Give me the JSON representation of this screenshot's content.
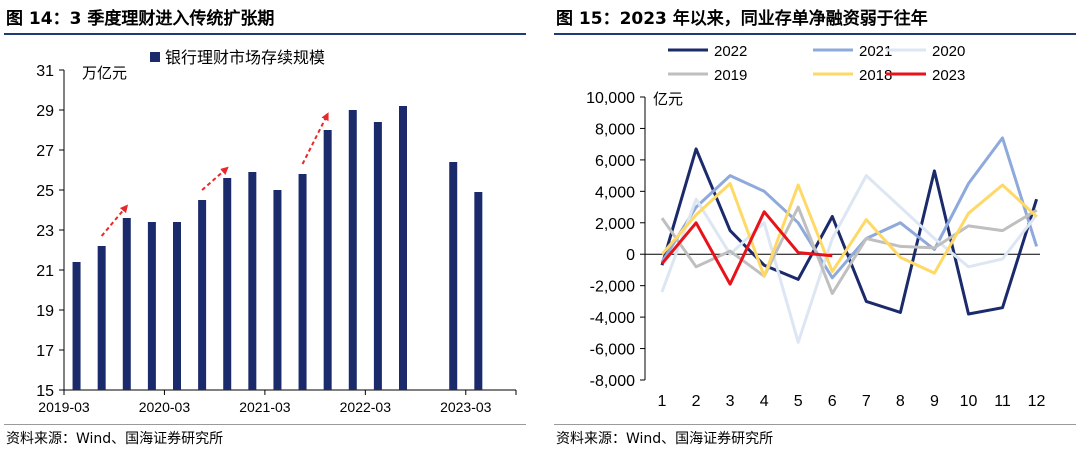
{
  "figures": [
    {
      "title": "图 14：3 季度理财进入传统扩张期",
      "source": "资料来源：Wind、国海证券研究所"
    },
    {
      "title": "图 15：2023 年以来，同业存单净融资弱于往年",
      "source": "资料来源：Wind、国海证券研究所"
    }
  ],
  "chart_data": [
    {
      "type": "bar",
      "title": "",
      "ylabel": "万亿元",
      "legend": {
        "position": "top",
        "entries": [
          "银行理财市场存续规模"
        ]
      },
      "ylim": [
        15,
        31
      ],
      "yticks": [
        15,
        17,
        19,
        21,
        23,
        25,
        27,
        29,
        31
      ],
      "x_tick_labels": [
        "2019-03",
        "2020-03",
        "2021-03",
        "2022-03",
        "2023-03"
      ],
      "categories": [
        "2019-03",
        "2019-06",
        "2019-09",
        "2019-12",
        "2020-03",
        "2020-06",
        "2020-09",
        "2020-12",
        "2021-03",
        "2021-06",
        "2021-09",
        "2021-12",
        "2022-03",
        "2022-06",
        "2022-09",
        "2022-12",
        "2023-03",
        "2023-06"
      ],
      "series": [
        {
          "name": "银行理财市场存续规模",
          "color": "#1b2a6b",
          "values": [
            21.4,
            22.2,
            23.6,
            23.4,
            23.4,
            24.5,
            25.6,
            25.9,
            25.0,
            25.8,
            28.0,
            29.0,
            28.4,
            29.2,
            null,
            26.4,
            24.9,
            null
          ]
        }
      ],
      "annotations": [
        {
          "type": "arrow",
          "from": [
            "2019-06",
            22.7
          ],
          "to": [
            "2019-09",
            24.2
          ],
          "color": "#e8282b",
          "style": "dashed"
        },
        {
          "type": "arrow",
          "from": [
            "2020-06",
            25.0
          ],
          "to": [
            "2020-09",
            26.1
          ],
          "color": "#e8282b",
          "style": "dashed"
        },
        {
          "type": "arrow",
          "from": [
            "2021-06",
            26.3
          ],
          "to": [
            "2021-09",
            28.8
          ],
          "color": "#e8282b",
          "style": "dashed"
        }
      ],
      "grid": false
    },
    {
      "type": "line",
      "title": "",
      "ylabel": "亿元",
      "x": [
        1,
        2,
        3,
        4,
        5,
        6,
        7,
        8,
        9,
        10,
        11,
        12
      ],
      "ylim": [
        -8000,
        10000
      ],
      "yticks": [
        -8000,
        -6000,
        -4000,
        -2000,
        0,
        2000,
        4000,
        6000,
        8000,
        10000
      ],
      "ytick_labels": [
        "-8,000",
        "-6,000",
        "-4,000",
        "-2,000",
        "0",
        "2,000",
        "4,000",
        "6,000",
        "8,000",
        "10,000"
      ],
      "legend": {
        "position": "top",
        "columns": 3
      },
      "grid": false,
      "series": [
        {
          "name": "2022",
          "color": "#1b2a6b",
          "width": 3,
          "values": [
            -700,
            6700,
            1500,
            -700,
            -1600,
            2400,
            -3000,
            -3700,
            5300,
            -3800,
            -3400,
            3500
          ]
        },
        {
          "name": "2021",
          "color": "#8ea9db",
          "width": 3,
          "values": [
            -500,
            3000,
            5000,
            4000,
            2000,
            -1500,
            1000,
            2000,
            300,
            4500,
            7400,
            500
          ]
        },
        {
          "name": "2020",
          "color": "#dde6f3",
          "width": 3,
          "values": [
            -2400,
            3500,
            0,
            2000,
            -5600,
            1000,
            5000,
            3000,
            1000,
            -800,
            -300,
            2500
          ]
        },
        {
          "name": "2019",
          "color": "#bfbfbf",
          "width": 3,
          "values": [
            2300,
            -800,
            200,
            -1400,
            3000,
            -2500,
            1000,
            500,
            400,
            1800,
            1500,
            2800
          ]
        },
        {
          "name": "2018",
          "color": "#ffd966",
          "width": 3,
          "values": [
            0,
            2500,
            4500,
            -1400,
            4400,
            -1100,
            2200,
            -200,
            -1200,
            2600,
            4400,
            2400
          ]
        },
        {
          "name": "2023",
          "color": "#e8121a",
          "width": 3,
          "values": [
            -600,
            2000,
            -1900,
            2700,
            100,
            -100,
            null,
            null,
            null,
            null,
            null,
            null
          ]
        }
      ]
    }
  ]
}
